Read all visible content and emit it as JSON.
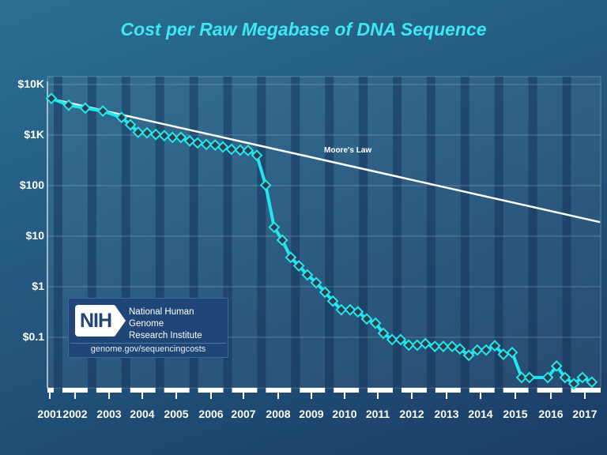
{
  "chart_data": {
    "type": "line",
    "title": "Cost per Raw Megabase of DNA Sequence",
    "xlabel": "",
    "ylabel": "",
    "yscale": "log",
    "ylim": [
      0.01,
      10000
    ],
    "xlim": [
      2000.95,
      2017.3
    ],
    "y_tick_values": [
      10000,
      1000,
      100,
      10,
      1,
      0.1
    ],
    "y_tick_labels": [
      "$10K",
      "$1K",
      "$100",
      "$10",
      "$1",
      "$0.1"
    ],
    "x_tick_labels": [
      "2001",
      "2002",
      "2003",
      "2004",
      "2005",
      "2006",
      "2007",
      "2008",
      "2009",
      "2010",
      "2011",
      "2012",
      "2013",
      "2014",
      "2015",
      "2016",
      "2017"
    ],
    "grid": true,
    "series": [
      {
        "color": "#22e6f0",
        "marker": "diamond",
        "x": [
          2001.07,
          2001.58,
          2002.07,
          2002.59,
          2003.14,
          2003.4,
          2003.63,
          2003.89,
          2004.15,
          2004.4,
          2004.64,
          2004.89,
          2005.15,
          2005.38,
          2005.64,
          2005.9,
          2006.13,
          2006.38,
          2006.64,
          2006.87,
          2007.13,
          2007.39,
          2007.64,
          2007.88,
          2008.13,
          2008.37,
          2008.62,
          2008.88,
          2009.14,
          2009.37,
          2009.62,
          2009.88,
          2010.11,
          2010.37,
          2010.63,
          2010.86,
          2011.12,
          2011.37,
          2011.61,
          2011.86,
          2012.1,
          2012.38,
          2012.63,
          2012.89,
          2013.12,
          2013.38,
          2013.63,
          2013.89,
          2014.15,
          2014.4,
          2014.66,
          2014.94,
          2015.17,
          2015.71,
          2015.97,
          2016.22,
          2016.48,
          2016.73,
          2017.01
        ],
        "y": [
          5292,
          3898,
          3414,
          2986,
          2231,
          1599,
          1136,
          1107,
          1029,
          974,
          898,
          899,
          767,
          699,
          652,
          636,
          582,
          523,
          503,
          496,
          397,
          102,
          15.03,
          8.36,
          3.81,
          2.59,
          1.72,
          1.2,
          0.78,
          0.52,
          0.35,
          0.35,
          0.32,
          0.23,
          0.19,
          0.12,
          0.09,
          0.09,
          0.07,
          0.07,
          0.075,
          0.066,
          0.066,
          0.066,
          0.059,
          0.044,
          0.056,
          0.056,
          0.068,
          0.046,
          0.05,
          0.016,
          0.016,
          0.016,
          0.027,
          0.016,
          0.012,
          0.016,
          0.013
        ]
      },
      {
        "name": "Moore's Law",
        "color": "#ffffff",
        "x": [
          2000.95,
          2017.25
        ],
        "y": [
          5420,
          19
        ]
      }
    ],
    "annotations": [
      "Moore's Law"
    ]
  },
  "logo": {
    "mark": "NIH",
    "name_line1": "National Human Genome",
    "name_line2": "Research Institute",
    "url": "genome.gov/sequencingcosts"
  }
}
